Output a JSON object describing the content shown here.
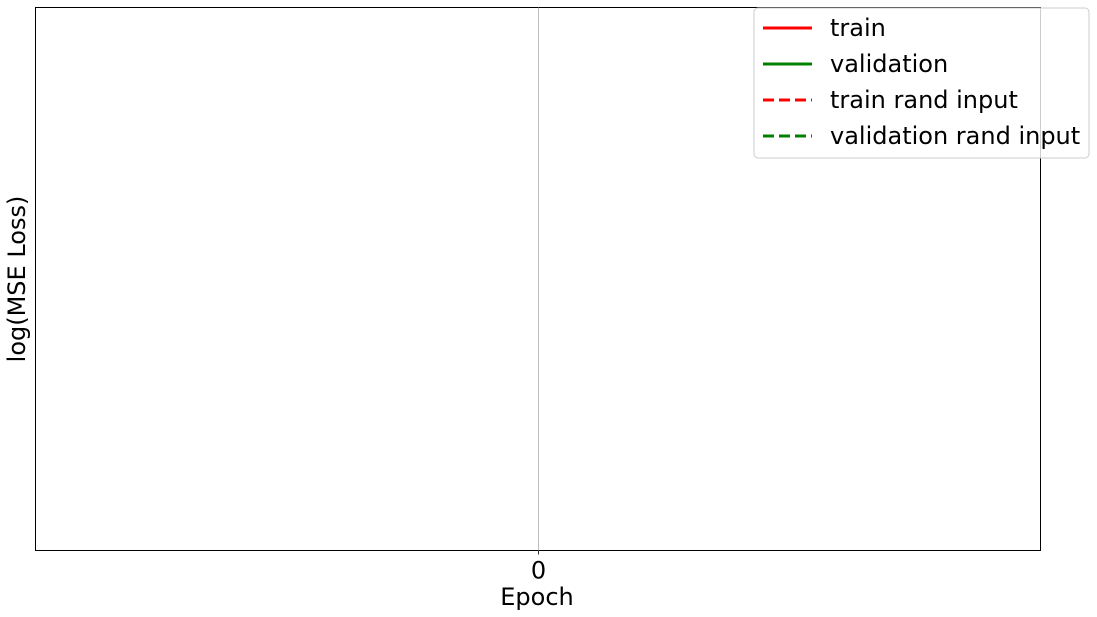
{
  "chart_data": {
    "type": "line",
    "title": "",
    "xlabel": "Epoch",
    "ylabel": "log(MSE Loss)",
    "x_ticks": [
      0
    ],
    "x_tick_labels": [
      "0"
    ],
    "y_ticks": [],
    "grid": "vertical",
    "legend_position": "top-right",
    "series": [
      {
        "name": "train",
        "color": "#ff0000",
        "linestyle": "solid",
        "x": [],
        "y": []
      },
      {
        "name": "validation",
        "color": "#008000",
        "linestyle": "solid",
        "x": [],
        "y": []
      },
      {
        "name": "train rand input",
        "color": "#ff0000",
        "linestyle": "dashed",
        "x": [],
        "y": []
      },
      {
        "name": "validation rand input",
        "color": "#008000",
        "linestyle": "dashed",
        "x": [],
        "y": []
      }
    ]
  }
}
